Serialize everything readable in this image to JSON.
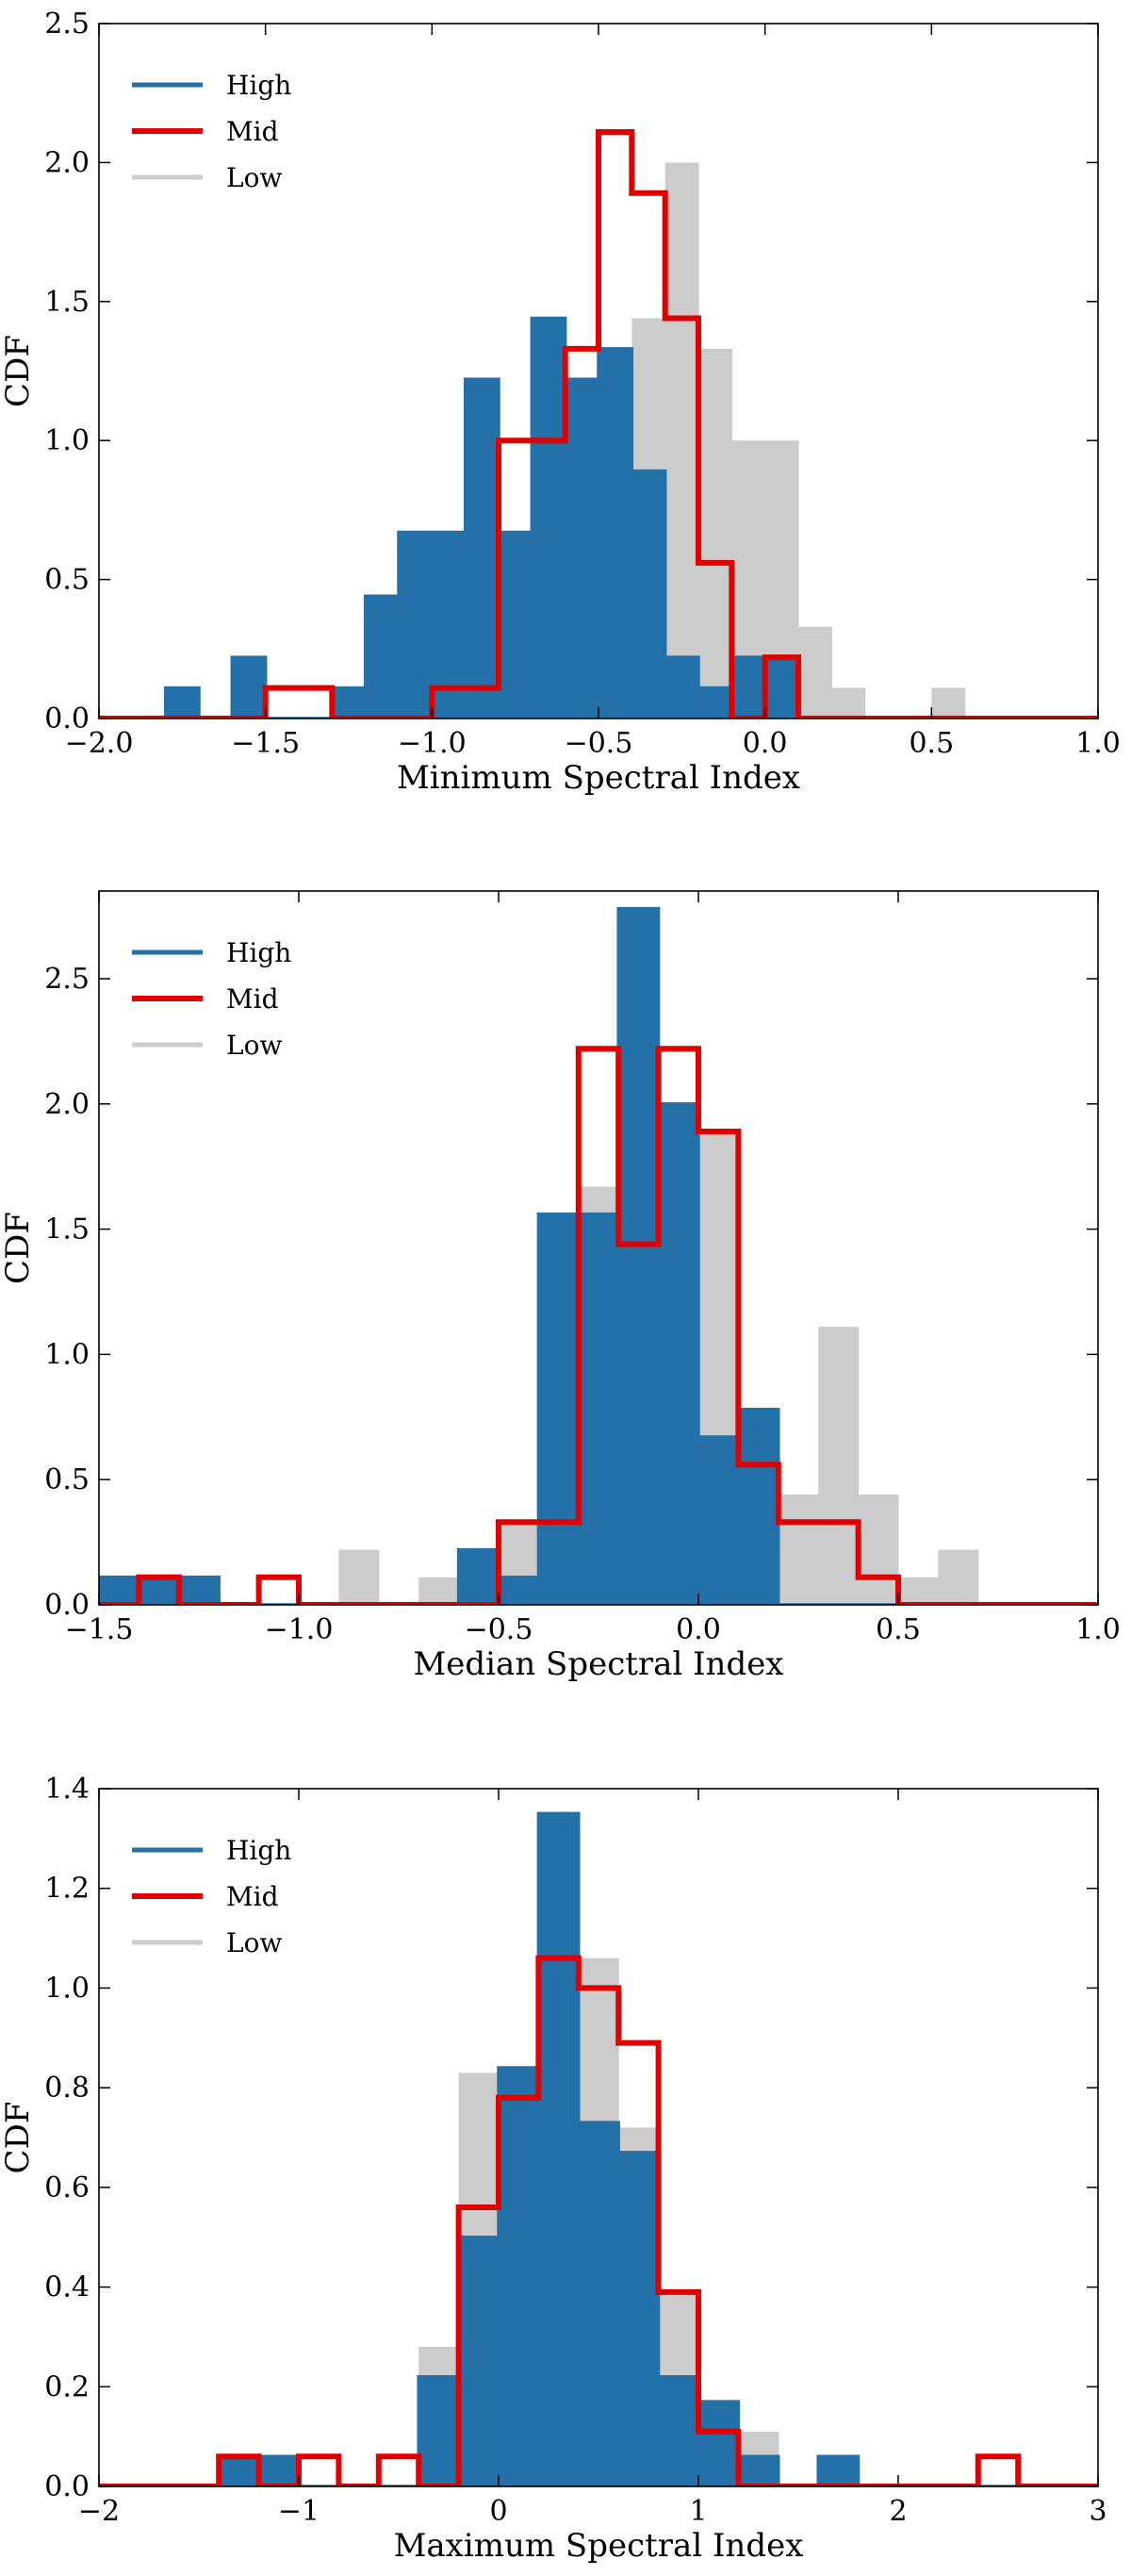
{
  "chart_data": [
    {
      "type": "histogram",
      "xlabel": "Minimum Spectral Index",
      "ylabel": "CDF",
      "xlim": [
        -2.0,
        1.0
      ],
      "ylim": [
        0.0,
        2.5
      ],
      "xticks": [
        -2.0,
        -1.5,
        -1.0,
        -0.5,
        0.0,
        0.5,
        1.0
      ],
      "xtick_labels": [
        "−2.0",
        "−1.5",
        "−1.0",
        "−0.5",
        "0.0",
        "0.5",
        "1.0"
      ],
      "yticks": [
        0.0,
        0.5,
        1.0,
        1.5,
        2.0,
        2.5
      ],
      "ytick_labels": [
        "0.0",
        "0.5",
        "1.0",
        "1.5",
        "2.0",
        "2.5"
      ],
      "legend": [
        "High",
        "Mid",
        "Low"
      ],
      "legend_position": "top-left",
      "series": [
        {
          "name": "Low",
          "style": "filled",
          "color": "#cccccc",
          "edges": [
            -0.8,
            -0.7,
            -0.6,
            -0.5,
            -0.4,
            -0.3,
            -0.2,
            -0.1,
            0.0,
            0.1,
            0.2,
            0.3,
            0.4,
            0.5,
            0.6
          ],
          "values": [
            0.22,
            0.11,
            0.89,
            1.11,
            1.44,
            2.0,
            1.33,
            1.0,
            1.0,
            0.33,
            0.11,
            0.0,
            0.0,
            0.11
          ]
        },
        {
          "name": "High",
          "style": "filled+step",
          "color": "#2470a8",
          "edges": [
            -1.8,
            -1.7,
            -1.6,
            -1.5,
            -1.4,
            -1.3,
            -1.2,
            -1.1,
            -1.0,
            -0.9,
            -0.8,
            -0.7,
            -0.6,
            -0.5,
            -0.4,
            -0.3,
            -0.2,
            -0.1,
            0.0,
            0.1
          ],
          "values": [
            0.11,
            0.0,
            0.22,
            0.0,
            0.0,
            0.11,
            0.44,
            0.67,
            0.67,
            1.22,
            0.67,
            1.44,
            1.22,
            1.33,
            0.89,
            0.22,
            0.11,
            0.22,
            0.22
          ]
        },
        {
          "name": "Mid",
          "style": "step",
          "color": "#e00000",
          "edges": [
            -1.5,
            -1.4,
            -1.3,
            -1.2,
            -1.1,
            -1.0,
            -0.9,
            -0.8,
            -0.7,
            -0.6,
            -0.5,
            -0.4,
            -0.3,
            -0.2,
            -0.1,
            0.0,
            0.1
          ],
          "values": [
            0.11,
            0.11,
            0.0,
            0.0,
            0.0,
            0.11,
            0.11,
            1.0,
            1.0,
            1.33,
            2.11,
            1.89,
            1.44,
            0.56,
            0.0,
            0.22
          ]
        }
      ]
    },
    {
      "type": "histogram",
      "xlabel": "Median Spectral Index",
      "ylabel": "CDF",
      "xlim": [
        -1.5,
        1.0
      ],
      "ylim": [
        0.0,
        2.85
      ],
      "xticks": [
        -1.5,
        -1.0,
        -0.5,
        0.0,
        0.5,
        1.0
      ],
      "xtick_labels": [
        "−1.5",
        "−1.0",
        "−0.5",
        "0.0",
        "0.5",
        "1.0"
      ],
      "yticks": [
        0.0,
        0.5,
        1.0,
        1.5,
        2.0,
        2.5
      ],
      "ytick_labels": [
        "0.0",
        "0.5",
        "1.0",
        "1.5",
        "2.0",
        "2.5"
      ],
      "legend": [
        "High",
        "Mid",
        "Low"
      ],
      "legend_position": "top-left",
      "series": [
        {
          "name": "Low",
          "style": "filled",
          "color": "#cccccc",
          "edges": [
            -0.9,
            -0.8,
            -0.7,
            -0.6,
            -0.5,
            -0.4,
            -0.3,
            -0.2,
            -0.1,
            0.0,
            0.1,
            0.2,
            0.3,
            0.4,
            0.5,
            0.6,
            0.7
          ],
          "values": [
            0.22,
            0.0,
            0.11,
            0.22,
            0.33,
            0.67,
            1.67,
            1.67,
            1.67,
            1.89,
            0.67,
            0.44,
            1.11,
            0.44,
            0.11,
            0.22
          ]
        },
        {
          "name": "High",
          "style": "filled+step",
          "color": "#2470a8",
          "edges": [
            -1.5,
            -1.4,
            -1.3,
            -1.2,
            -1.1,
            -1.0,
            -0.9,
            -0.8,
            -0.7,
            -0.6,
            -0.5,
            -0.4,
            -0.3,
            -0.2,
            -0.1,
            0.0,
            0.1,
            0.2
          ],
          "values": [
            0.11,
            0.11,
            0.11,
            0.0,
            0.0,
            0.0,
            0.0,
            0.0,
            0.0,
            0.22,
            0.11,
            1.56,
            1.56,
            2.78,
            2.0,
            0.67,
            0.78
          ]
        },
        {
          "name": "Mid",
          "style": "step",
          "color": "#e00000",
          "edges": [
            -1.4,
            -1.3,
            -1.2,
            -1.1,
            -1.0,
            -0.9,
            -0.8,
            -0.7,
            -0.6,
            -0.5,
            -0.4,
            -0.3,
            -0.2,
            -0.1,
            0.0,
            0.1,
            0.2,
            0.3,
            0.4,
            0.5
          ],
          "values": [
            0.11,
            0.0,
            0.0,
            0.11,
            0.0,
            0.0,
            0.0,
            0.0,
            0.0,
            0.33,
            0.33,
            2.22,
            1.44,
            2.22,
            1.89,
            0.56,
            0.33,
            0.33,
            0.11
          ]
        }
      ]
    },
    {
      "type": "histogram",
      "xlabel": "Maximum Spectral Index",
      "ylabel": "CDF",
      "xlim": [
        -2,
        3
      ],
      "ylim": [
        0.0,
        1.4
      ],
      "xticks": [
        -2,
        -1,
        0,
        1,
        2,
        3
      ],
      "xtick_labels": [
        "−2",
        "−1",
        "0",
        "1",
        "2",
        "3"
      ],
      "yticks": [
        0.0,
        0.2,
        0.4,
        0.6,
        0.8,
        1.0,
        1.2,
        1.4
      ],
      "ytick_labels": [
        "0.0",
        "0.2",
        "0.4",
        "0.6",
        "0.8",
        "1.0",
        "1.2",
        "1.4"
      ],
      "legend": [
        "High",
        "Mid",
        "Low"
      ],
      "legend_position": "top-left",
      "series": [
        {
          "name": "Low",
          "style": "filled",
          "color": "#cccccc",
          "edges": [
            -0.4,
            -0.2,
            0.0,
            0.2,
            0.4,
            0.6,
            0.8,
            1.0,
            1.2,
            1.4
          ],
          "values": [
            0.28,
            0.83,
            0.83,
            0.67,
            1.06,
            0.72,
            0.39,
            0.17,
            0.11
          ]
        },
        {
          "name": "High",
          "style": "filled+step",
          "color": "#2470a8",
          "edges": [
            -1.4,
            -1.2,
            -1.0,
            -0.8,
            -0.6,
            -0.4,
            -0.2,
            0.0,
            0.2,
            0.4,
            0.6,
            0.8,
            1.0,
            1.2,
            1.4,
            1.6,
            1.8
          ],
          "values": [
            0.06,
            0.06,
            0.0,
            0.0,
            0.0,
            0.22,
            0.5,
            0.84,
            1.35,
            0.73,
            0.67,
            0.22,
            0.17,
            0.06,
            0.0,
            0.06
          ]
        },
        {
          "name": "Mid",
          "style": "step",
          "color": "#e00000",
          "edges": [
            -1.4,
            -1.2,
            -1.0,
            -0.8,
            -0.6,
            -0.4,
            -0.2,
            0.0,
            0.2,
            0.4,
            0.6,
            0.8,
            1.0,
            1.2,
            1.4,
            1.6,
            1.8,
            2.0,
            2.2,
            2.4,
            2.6
          ],
          "values": [
            0.06,
            0.0,
            0.06,
            0.0,
            0.06,
            0.0,
            0.56,
            0.78,
            1.06,
            1.0,
            0.89,
            0.39,
            0.11,
            0.0,
            0.0,
            0.0,
            0.0,
            0.0,
            0.0,
            0.06
          ]
        }
      ]
    }
  ]
}
